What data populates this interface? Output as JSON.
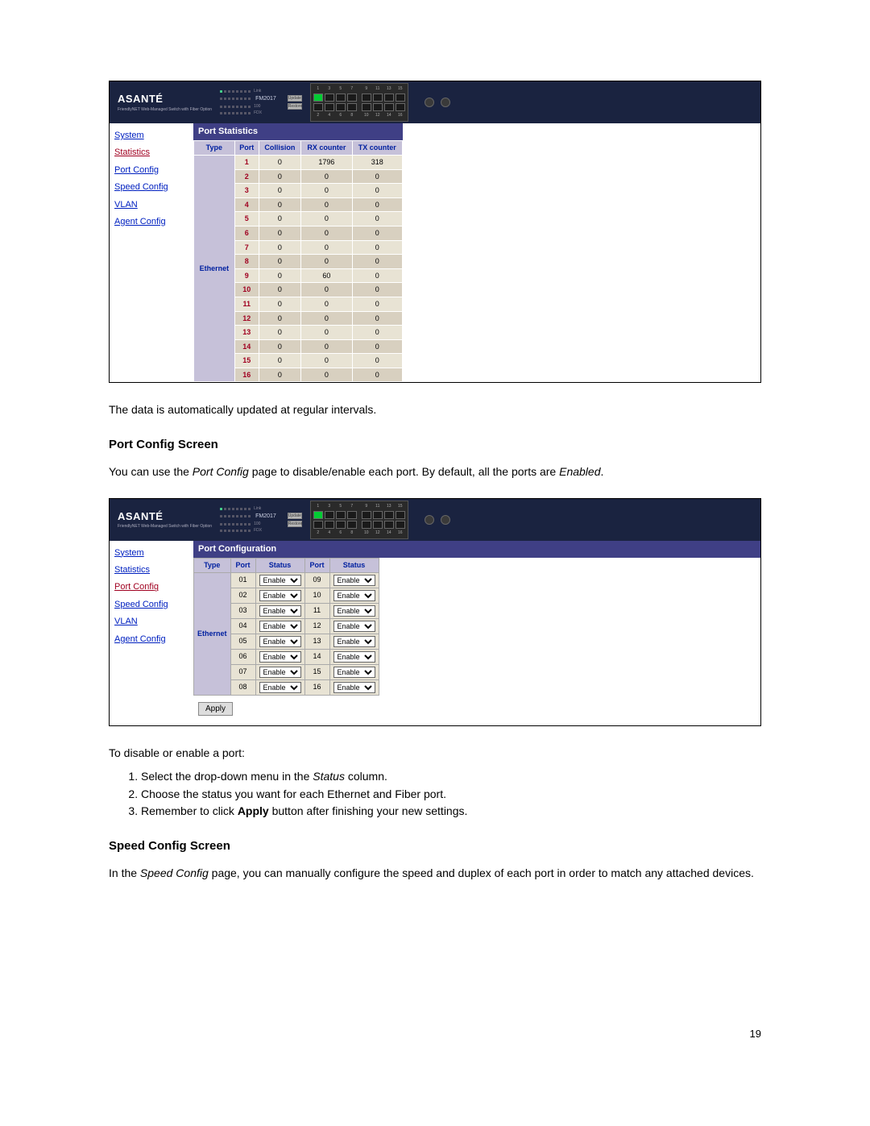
{
  "device": {
    "brand": "ASANTÉ",
    "model": "FM2017"
  },
  "nav": {
    "items": [
      "System",
      "Statistics",
      "Port Config",
      "Speed Config",
      "VLAN",
      "Agent Config"
    ]
  },
  "screenshot1": {
    "activeNav": "Statistics",
    "panelTitle": "Port Statistics",
    "columns": [
      "Type",
      "Port",
      "Collision",
      "RX counter",
      "TX counter"
    ],
    "typeLabel": "Ethernet",
    "rows": [
      {
        "port": "1",
        "collision": "0",
        "rx": "1796",
        "tx": "318"
      },
      {
        "port": "2",
        "collision": "0",
        "rx": "0",
        "tx": "0"
      },
      {
        "port": "3",
        "collision": "0",
        "rx": "0",
        "tx": "0"
      },
      {
        "port": "4",
        "collision": "0",
        "rx": "0",
        "tx": "0"
      },
      {
        "port": "5",
        "collision": "0",
        "rx": "0",
        "tx": "0"
      },
      {
        "port": "6",
        "collision": "0",
        "rx": "0",
        "tx": "0"
      },
      {
        "port": "7",
        "collision": "0",
        "rx": "0",
        "tx": "0"
      },
      {
        "port": "8",
        "collision": "0",
        "rx": "0",
        "tx": "0"
      },
      {
        "port": "9",
        "collision": "0",
        "rx": "60",
        "tx": "0"
      },
      {
        "port": "10",
        "collision": "0",
        "rx": "0",
        "tx": "0"
      },
      {
        "port": "11",
        "collision": "0",
        "rx": "0",
        "tx": "0"
      },
      {
        "port": "12",
        "collision": "0",
        "rx": "0",
        "tx": "0"
      },
      {
        "port": "13",
        "collision": "0",
        "rx": "0",
        "tx": "0"
      },
      {
        "port": "14",
        "collision": "0",
        "rx": "0",
        "tx": "0"
      },
      {
        "port": "15",
        "collision": "0",
        "rx": "0",
        "tx": "0"
      },
      {
        "port": "16",
        "collision": "0",
        "rx": "0",
        "tx": "0"
      }
    ]
  },
  "doc": {
    "p1": "The data is automatically updated at regular intervals.",
    "h1": "Port Config Screen",
    "p2a": "You can use the ",
    "p2b": "Port Config",
    "p2c": " page to disable/enable each port. By default, all the ports are ",
    "p2d": "Enabled",
    "p2e": ".",
    "p3": "To disable or enable a port:",
    "li1a": "Select the drop-down menu in the ",
    "li1b": "Status",
    "li1c": " column.",
    "li2": "Choose the status you want for each Ethernet and Fiber port.",
    "li3a": "Remember to click ",
    "li3b": "Apply",
    "li3c": " button after finishing your new settings.",
    "h2": "Speed Config Screen",
    "p4a": "In the ",
    "p4b": "Speed Config",
    "p4c": " page, you can manually configure the speed and duplex of each port in order to match any attached devices.",
    "pageNum": "19"
  },
  "screenshot2": {
    "activeNav": "Port Config",
    "panelTitle": "Port Configuration",
    "colType": "Type",
    "colPort": "Port",
    "colStatus": "Status",
    "typeLabel": "Ethernet",
    "statusValue": "Enable",
    "applyLabel": "Apply",
    "leftPorts": [
      "01",
      "02",
      "03",
      "04",
      "05",
      "06",
      "07",
      "08"
    ],
    "rightPorts": [
      "09",
      "10",
      "11",
      "12",
      "13",
      "14",
      "15",
      "16"
    ]
  },
  "colors": {
    "headerBg": "#1a2340",
    "panelTitleBg": "#3f3f85",
    "thBg": "#c6c1d9",
    "rowA": "#e8e3d4",
    "rowB": "#d8d0c0",
    "link": "#0020c0",
    "activeLink": "#a00020"
  }
}
